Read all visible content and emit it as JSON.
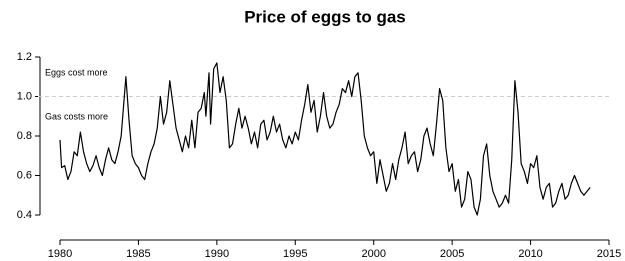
{
  "chart_data": {
    "type": "line",
    "title": "Price of eggs to gas",
    "annotations": [
      "Eggs cost more",
      "Gas costs more"
    ],
    "reference_line": 1.0,
    "color": "#000000",
    "x": [
      1980.0,
      1980.1,
      1980.3,
      1980.5,
      1980.7,
      1980.9,
      1981.1,
      1981.3,
      1981.5,
      1981.7,
      1981.9,
      1982.1,
      1982.3,
      1982.5,
      1982.7,
      1982.9,
      1983.1,
      1983.3,
      1983.5,
      1983.7,
      1983.9,
      1984.1,
      1984.2,
      1984.4,
      1984.6,
      1984.8,
      1985.0,
      1985.2,
      1985.4,
      1985.6,
      1985.8,
      1986.0,
      1986.2,
      1986.4,
      1986.6,
      1986.8,
      1987.0,
      1987.2,
      1987.4,
      1987.6,
      1987.8,
      1988.0,
      1988.2,
      1988.4,
      1988.6,
      1988.8,
      1989.0,
      1989.2,
      1989.3,
      1989.5,
      1989.6,
      1989.8,
      1990.0,
      1990.2,
      1990.4,
      1990.6,
      1990.8,
      1991.0,
      1991.2,
      1991.4,
      1991.6,
      1991.8,
      1992.0,
      1992.2,
      1992.4,
      1992.6,
      1992.8,
      1993.0,
      1993.2,
      1993.4,
      1993.6,
      1993.8,
      1994.0,
      1994.2,
      1994.4,
      1994.6,
      1994.8,
      1995.0,
      1995.2,
      1995.4,
      1995.6,
      1995.8,
      1996.0,
      1996.2,
      1996.4,
      1996.6,
      1996.8,
      1997.0,
      1997.2,
      1997.4,
      1997.6,
      1997.8,
      1998.0,
      1998.2,
      1998.4,
      1998.6,
      1998.8,
      1999.0,
      1999.2,
      1999.4,
      1999.6,
      1999.8,
      2000.0,
      2000.2,
      2000.4,
      2000.6,
      2000.8,
      2001.0,
      2001.2,
      2001.4,
      2001.6,
      2001.8,
      2002.0,
      2002.2,
      2002.4,
      2002.6,
      2002.8,
      2003.0,
      2003.2,
      2003.4,
      2003.6,
      2003.8,
      2004.0,
      2004.2,
      2004.4,
      2004.6,
      2004.8,
      2005.0,
      2005.2,
      2005.4,
      2005.6,
      2005.8,
      2006.0,
      2006.2,
      2006.4,
      2006.6,
      2006.8,
      2007.0,
      2007.2,
      2007.4,
      2007.6,
      2007.8,
      2008.0,
      2008.2,
      2008.4,
      2008.6,
      2008.8,
      2009.0,
      2009.2,
      2009.4,
      2009.6,
      2009.8,
      2010.0,
      2010.2,
      2010.4,
      2010.6,
      2010.8,
      2011.0,
      2011.2,
      2011.4,
      2011.6,
      2011.8,
      2012.0,
      2012.2,
      2012.4,
      2012.6,
      2012.8,
      2013.0,
      2013.2,
      2013.4,
      2013.6,
      2013.8
    ],
    "values": [
      0.78,
      0.64,
      0.65,
      0.58,
      0.62,
      0.72,
      0.7,
      0.82,
      0.72,
      0.66,
      0.62,
      0.65,
      0.7,
      0.64,
      0.6,
      0.68,
      0.74,
      0.68,
      0.66,
      0.72,
      0.8,
      1.0,
      1.1,
      0.88,
      0.7,
      0.66,
      0.64,
      0.6,
      0.58,
      0.66,
      0.72,
      0.76,
      0.84,
      1.0,
      0.86,
      0.92,
      1.08,
      0.96,
      0.84,
      0.78,
      0.72,
      0.8,
      0.74,
      0.88,
      0.74,
      0.92,
      0.94,
      1.02,
      0.9,
      1.12,
      0.86,
      1.14,
      1.17,
      1.02,
      1.1,
      0.98,
      0.74,
      0.76,
      0.86,
      0.94,
      0.84,
      0.9,
      0.84,
      0.76,
      0.82,
      0.74,
      0.86,
      0.88,
      0.78,
      0.82,
      0.9,
      0.82,
      0.86,
      0.78,
      0.74,
      0.8,
      0.76,
      0.82,
      0.78,
      0.88,
      0.96,
      1.06,
      0.92,
      0.98,
      0.82,
      0.9,
      1.02,
      0.9,
      0.84,
      0.86,
      0.92,
      0.96,
      1.04,
      1.02,
      1.08,
      1.0,
      1.1,
      1.12,
      0.98,
      0.8,
      0.74,
      0.7,
      0.72,
      0.56,
      0.68,
      0.6,
      0.52,
      0.56,
      0.66,
      0.58,
      0.68,
      0.74,
      0.82,
      0.66,
      0.7,
      0.72,
      0.62,
      0.68,
      0.8,
      0.84,
      0.76,
      0.7,
      0.86,
      1.04,
      0.98,
      0.74,
      0.62,
      0.66,
      0.52,
      0.58,
      0.44,
      0.48,
      0.62,
      0.58,
      0.44,
      0.4,
      0.48,
      0.7,
      0.76,
      0.6,
      0.52,
      0.48,
      0.44,
      0.46,
      0.5,
      0.46,
      0.68,
      1.08,
      0.92,
      0.66,
      0.62,
      0.56,
      0.66,
      0.64,
      0.7,
      0.54,
      0.48,
      0.54,
      0.56,
      0.44,
      0.46,
      0.52,
      0.56,
      0.48,
      0.5,
      0.56,
      0.6,
      0.56,
      0.52,
      0.5,
      0.52,
      0.54
    ],
    "xlim": [
      1980,
      2015
    ],
    "xticks": [
      1980,
      1985,
      1990,
      1995,
      2000,
      2005,
      2010,
      2015
    ],
    "ylim": [
      0.4,
      1.2
    ],
    "yticks": [
      0.4,
      0.6,
      0.8,
      {
        "value": 1,
        "label": "1.0"
      },
      1.2
    ]
  }
}
